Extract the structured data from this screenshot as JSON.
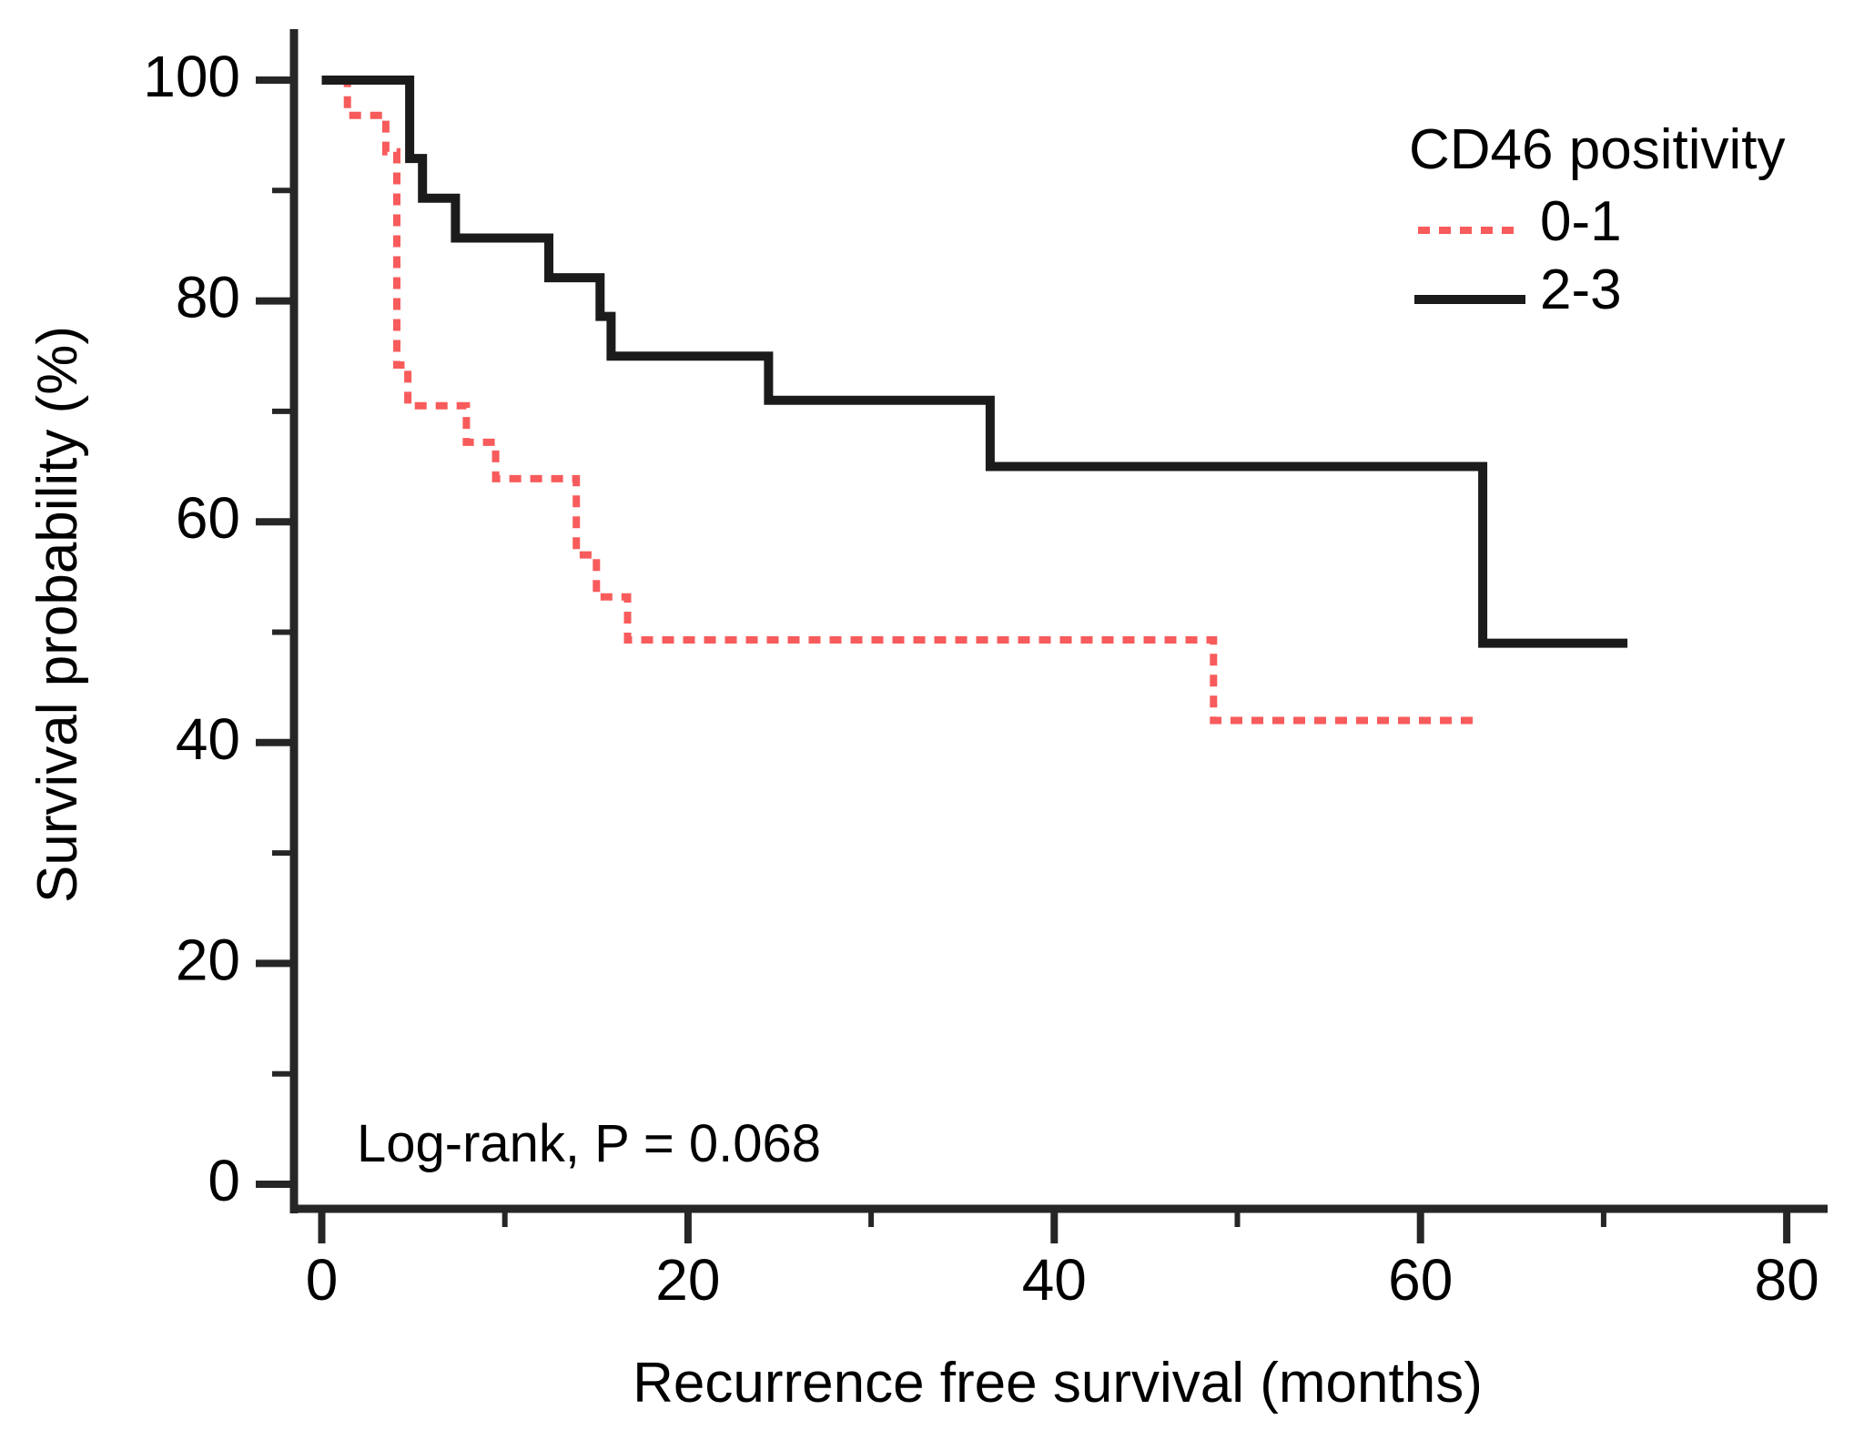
{
  "figure": {
    "kind": "kaplan-meier-survival-plot",
    "background_color": "#ffffff",
    "text_color": "#000000",
    "axis_color": "#262626"
  },
  "chart_data": {
    "type": "line",
    "subtype": "kaplan-meier-step",
    "title": "",
    "xlabel": "Recurrence free survival (months)",
    "ylabel": "Survival probability (%)",
    "xlim": [
      0,
      82
    ],
    "ylim": [
      0,
      100
    ],
    "grid": false,
    "x_axis": {
      "major_ticks": [
        0,
        20,
        40,
        60,
        80
      ],
      "minor_ticks": [
        10,
        30,
        50,
        70
      ]
    },
    "y_axis": {
      "major_ticks": [
        100,
        80,
        60,
        40,
        20,
        0
      ],
      "minor_ticks": [
        90,
        70,
        50,
        30,
        10
      ]
    },
    "annotation": "Log-rank, P = 0.068",
    "legend": {
      "title": "CD46 positivity",
      "position": "top-right"
    },
    "series": [
      {
        "name": "0-1",
        "color": "#f85b5b",
        "line_style": "dashed",
        "km_steps": [
          [
            0,
            100
          ],
          [
            1.4,
            96.8
          ],
          [
            3.5,
            93.5
          ],
          [
            4.1,
            74.2
          ],
          [
            4.7,
            70.5
          ],
          [
            7.9,
            67.2
          ],
          [
            9.5,
            63.9
          ],
          [
            13.9,
            57.0
          ],
          [
            15.0,
            53.2
          ],
          [
            16.7,
            49.3
          ],
          [
            48.7,
            42.0
          ]
        ],
        "end_time": 62.9
      },
      {
        "name": "2-3",
        "color": "#1b1b1b",
        "line_style": "solid",
        "km_steps": [
          [
            0,
            100
          ],
          [
            4.8,
            92.9
          ],
          [
            5.5,
            89.3
          ],
          [
            7.3,
            85.7
          ],
          [
            12.4,
            82.1
          ],
          [
            15.2,
            78.6
          ],
          [
            15.8,
            75.0
          ],
          [
            24.4,
            71.0
          ],
          [
            36.5,
            65.0
          ],
          [
            63.4,
            49.0
          ]
        ],
        "end_time": 71.3
      }
    ]
  }
}
